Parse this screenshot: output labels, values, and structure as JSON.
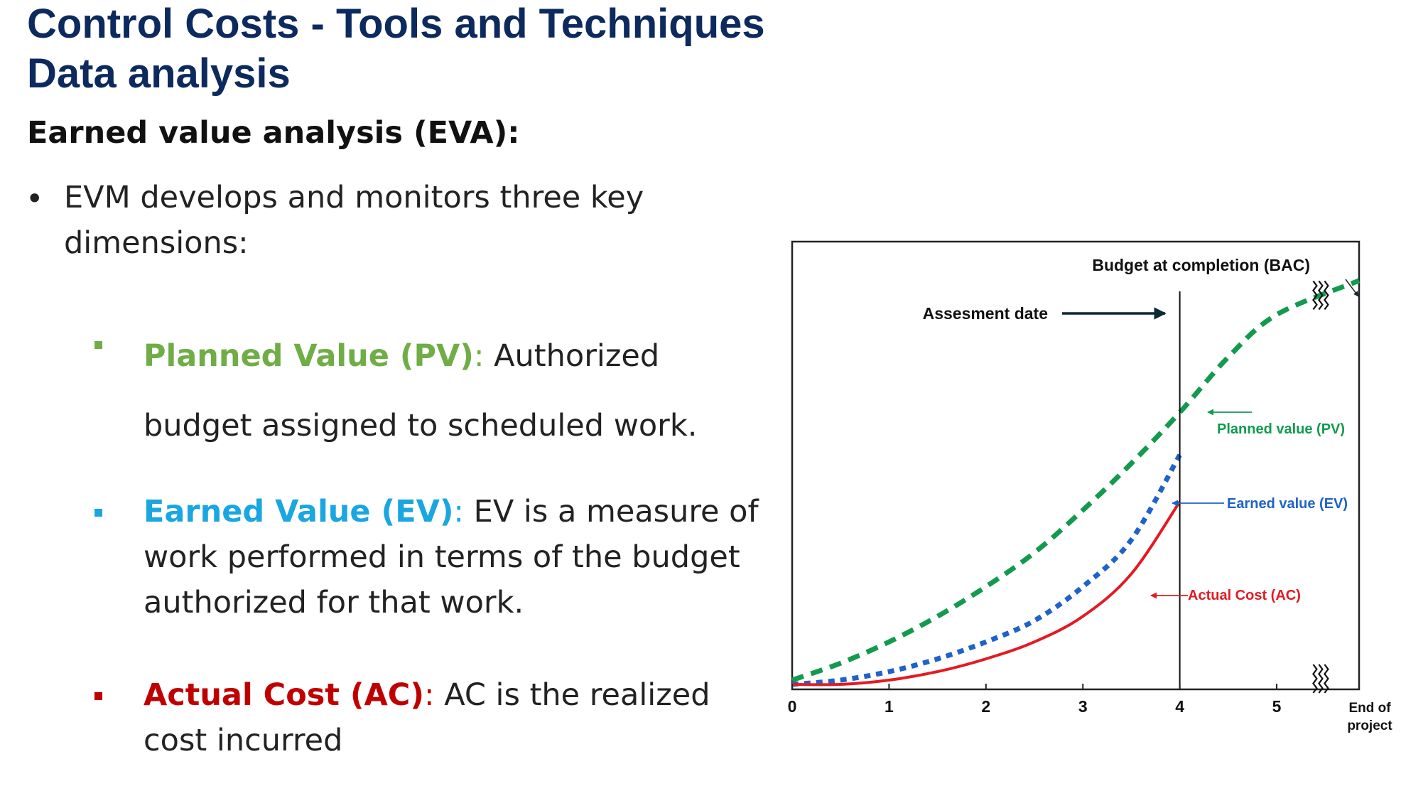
{
  "slide": {
    "title_line1": "Control Costs - Tools and Techniques",
    "title_line2": "Data analysis",
    "subtitle": "Earned value analysis (EVA):",
    "bullet_char": "•",
    "bullet_main": "EVM develops and monitors three key dimensions:",
    "items": [
      {
        "term": "Planned Value (PV)",
        "colon": ":",
        "desc": " Authorized budget assigned to scheduled work."
      },
      {
        "term": "Earned Value (EV)",
        "colon": ":",
        "desc": " EV is a measure of work performed in terms of the budget authorized for that work."
      },
      {
        "term": "Actual Cost (AC)",
        "colon": ":",
        "desc": " AC is the realized cost incurred"
      }
    ]
  },
  "colors": {
    "title": "#0c2a5e",
    "pv": "#139a4f",
    "ev": "#1f62c9",
    "ac": "#e21b22",
    "pv_text": "#70ad47",
    "ev_text": "#1aa6e0",
    "ac_text": "#c00000"
  },
  "chart_data": {
    "type": "line",
    "x_ticks": [
      "0",
      "1",
      "2",
      "3",
      "4",
      "5"
    ],
    "x_end_label": [
      "End of",
      "project"
    ],
    "xlim": [
      0,
      5.85
    ],
    "ylim": [
      0,
      1
    ],
    "grid": false,
    "assessment_x": 4,
    "break_x": 5.45,
    "series": [
      {
        "name": "Planned value (PV)",
        "style": "dashed",
        "x": [
          0,
          0.5,
          1,
          1.5,
          2,
          2.5,
          3,
          3.5,
          4,
          4.5,
          5,
          5.85
        ],
        "y": [
          0.01,
          0.05,
          0.1,
          0.16,
          0.23,
          0.31,
          0.41,
          0.52,
          0.64,
          0.77,
          0.87,
          0.95
        ]
      },
      {
        "name": "Earned value (EV)",
        "style": "dotted",
        "x": [
          0,
          0.5,
          1,
          1.5,
          2,
          2.5,
          3,
          3.5,
          4
        ],
        "y": [
          0,
          0.01,
          0.03,
          0.06,
          0.1,
          0.15,
          0.23,
          0.34,
          0.54
        ]
      },
      {
        "name": "Actual Cost (AC)",
        "style": "solid",
        "x": [
          0,
          0.5,
          1,
          1.5,
          2,
          2.5,
          3,
          3.5,
          4
        ],
        "y": [
          0,
          0.0,
          0.01,
          0.03,
          0.06,
          0.1,
          0.16,
          0.26,
          0.43
        ]
      }
    ],
    "annotations": {
      "bac": "Budget at completion (BAC)",
      "assessment": "Assesment date",
      "pv": "Planned value (PV)",
      "ev": "Earned value (EV)",
      "ac": "Actual Cost (AC)"
    }
  }
}
